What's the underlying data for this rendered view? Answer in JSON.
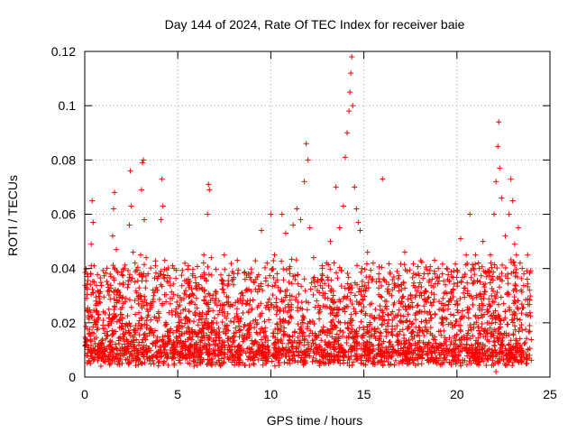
{
  "chart_data": {
    "type": "scatter",
    "title": "Day 144 of 2024, Rate Of TEC Index for receiver baie",
    "xlabel": "GPS time / hours",
    "ylabel": "ROTI / TECUs",
    "xlim": [
      0,
      25
    ],
    "ylim": [
      0,
      0.12
    ],
    "x_ticks": [
      0,
      5,
      10,
      15,
      20,
      25
    ],
    "x_tick_labels": [
      "0",
      "5",
      "10",
      "15",
      "20",
      "25"
    ],
    "y_ticks": [
      0,
      0.02,
      0.04,
      0.06,
      0.08,
      0.1,
      0.12
    ],
    "y_tick_labels": [
      "0",
      "0.02",
      "0.04",
      "0.06",
      "0.08",
      "0.1",
      "0.12"
    ],
    "grid": true,
    "marker": "plus",
    "marker_color": "#ff0000",
    "series": [
      {
        "points": [
          [
            0.1,
            0.012
          ],
          [
            0.2,
            0.022
          ],
          [
            0.3,
            0.034
          ],
          [
            0.35,
            0.049
          ],
          [
            0.4,
            0.065
          ],
          [
            0.45,
            0.057
          ],
          [
            0.5,
            0.041
          ],
          [
            0.6,
            0.028
          ],
          [
            0.7,
            0.018
          ],
          [
            0.8,
            0.009
          ],
          [
            1.0,
            0.006
          ],
          [
            1.2,
            0.015
          ],
          [
            1.3,
            0.025
          ],
          [
            1.4,
            0.037
          ],
          [
            1.5,
            0.052
          ],
          [
            1.55,
            0.062
          ],
          [
            1.6,
            0.068
          ],
          [
            1.7,
            0.047
          ],
          [
            1.8,
            0.032
          ],
          [
            1.9,
            0.021
          ],
          [
            2.0,
            0.011
          ],
          [
            2.2,
            0.019
          ],
          [
            2.3,
            0.033
          ],
          [
            2.4,
            0.056
          ],
          [
            2.45,
            0.076
          ],
          [
            2.5,
            0.063
          ],
          [
            2.6,
            0.046
          ],
          [
            2.7,
            0.042
          ],
          [
            2.8,
            0.031
          ],
          [
            2.9,
            0.027
          ],
          [
            3.0,
            0.045
          ],
          [
            3.05,
            0.069
          ],
          [
            3.1,
            0.079
          ],
          [
            3.15,
            0.08
          ],
          [
            3.2,
            0.058
          ],
          [
            3.3,
            0.044
          ],
          [
            3.4,
            0.038
          ],
          [
            3.5,
            0.025
          ],
          [
            3.6,
            0.017
          ],
          [
            3.7,
            0.03
          ],
          [
            3.8,
            0.041
          ],
          [
            3.9,
            0.032
          ],
          [
            4.0,
            0.022
          ],
          [
            4.1,
            0.058
          ],
          [
            4.15,
            0.073
          ],
          [
            4.2,
            0.063
          ],
          [
            4.3,
            0.043
          ],
          [
            4.5,
            0.035
          ],
          [
            4.6,
            0.027
          ],
          [
            4.8,
            0.04
          ],
          [
            5.0,
            0.03
          ],
          [
            5.2,
            0.016
          ],
          [
            5.4,
            0.025
          ],
          [
            5.6,
            0.033
          ],
          [
            5.8,
            0.038
          ],
          [
            6.0,
            0.029
          ],
          [
            6.2,
            0.023
          ],
          [
            6.4,
            0.045
          ],
          [
            6.6,
            0.06
          ],
          [
            6.65,
            0.071
          ],
          [
            6.7,
            0.069
          ],
          [
            6.8,
            0.044
          ],
          [
            7.0,
            0.028
          ],
          [
            7.2,
            0.018
          ],
          [
            7.5,
            0.045
          ],
          [
            7.8,
            0.026
          ],
          [
            8.0,
            0.034
          ],
          [
            8.2,
            0.043
          ],
          [
            8.5,
            0.03
          ],
          [
            8.8,
            0.038
          ],
          [
            9.0,
            0.025
          ],
          [
            9.2,
            0.036
          ],
          [
            9.5,
            0.054
          ],
          [
            9.8,
            0.042
          ],
          [
            10.0,
            0.06
          ],
          [
            10.2,
            0.045
          ],
          [
            10.4,
            0.033
          ],
          [
            10.6,
            0.06
          ],
          [
            10.8,
            0.053
          ],
          [
            11.0,
            0.04
          ],
          [
            11.2,
            0.056
          ],
          [
            11.4,
            0.062
          ],
          [
            11.6,
            0.058
          ],
          [
            11.8,
            0.072
          ],
          [
            11.9,
            0.086
          ],
          [
            12.0,
            0.08
          ],
          [
            12.1,
            0.055
          ],
          [
            12.3,
            0.044
          ],
          [
            12.5,
            0.035
          ],
          [
            12.8,
            0.03
          ],
          [
            13.0,
            0.042
          ],
          [
            13.2,
            0.05
          ],
          [
            13.5,
            0.07
          ],
          [
            13.7,
            0.055
          ],
          [
            13.9,
            0.063
          ],
          [
            14.0,
            0.081
          ],
          [
            14.1,
            0.09
          ],
          [
            14.2,
            0.098
          ],
          [
            14.25,
            0.105
          ],
          [
            14.3,
            0.112
          ],
          [
            14.35,
            0.118
          ],
          [
            14.4,
            0.1
          ],
          [
            14.5,
            0.07
          ],
          [
            14.6,
            0.062
          ],
          [
            14.7,
            0.057
          ],
          [
            14.8,
            0.054
          ],
          [
            14.9,
            0.04
          ],
          [
            15.0,
            0.032
          ],
          [
            15.2,
            0.046
          ],
          [
            15.5,
            0.042
          ],
          [
            15.8,
            0.038
          ],
          [
            16.0,
            0.073
          ],
          [
            16.2,
            0.035
          ],
          [
            16.5,
            0.03
          ],
          [
            17.0,
            0.034
          ],
          [
            17.2,
            0.046
          ],
          [
            17.5,
            0.026
          ],
          [
            18.0,
            0.03
          ],
          [
            18.5,
            0.035
          ],
          [
            18.8,
            0.043
          ],
          [
            19.0,
            0.04
          ],
          [
            19.2,
            0.022
          ],
          [
            19.5,
            0.036
          ],
          [
            19.8,
            0.032
          ],
          [
            20.0,
            0.028
          ],
          [
            20.2,
            0.051
          ],
          [
            20.5,
            0.045
          ],
          [
            20.7,
            0.06
          ],
          [
            21.0,
            0.045
          ],
          [
            21.2,
            0.04
          ],
          [
            21.4,
            0.05
          ],
          [
            21.6,
            0.037
          ],
          [
            21.8,
            0.045
          ],
          [
            22.0,
            0.06
          ],
          [
            22.1,
            0.072
          ],
          [
            22.2,
            0.085
          ],
          [
            22.25,
            0.094
          ],
          [
            22.3,
            0.077
          ],
          [
            22.4,
            0.066
          ],
          [
            22.6,
            0.052
          ],
          [
            22.8,
            0.06
          ],
          [
            22.9,
            0.073
          ],
          [
            23.0,
            0.065
          ],
          [
            23.1,
            0.049
          ],
          [
            23.2,
            0.045
          ],
          [
            23.3,
            0.055
          ],
          [
            23.4,
            0.042
          ],
          [
            23.6,
            0.038
          ],
          [
            23.8,
            0.045
          ],
          [
            23.9,
            0.032
          ],
          [
            0.1,
            0.008
          ],
          [
            0.5,
            0.01
          ],
          [
            0.9,
            0.012
          ],
          [
            1.1,
            0.01
          ],
          [
            1.5,
            0.009
          ],
          [
            2.1,
            0.008
          ],
          [
            2.6,
            0.012
          ],
          [
            3.3,
            0.01
          ],
          [
            3.9,
            0.013
          ],
          [
            4.4,
            0.009
          ],
          [
            4.9,
            0.011
          ],
          [
            5.3,
            0.008
          ],
          [
            5.9,
            0.012
          ],
          [
            6.3,
            0.009
          ],
          [
            6.9,
            0.01
          ],
          [
            7.4,
            0.013
          ],
          [
            7.9,
            0.008
          ],
          [
            8.4,
            0.011
          ],
          [
            8.9,
            0.009
          ],
          [
            9.4,
            0.012
          ],
          [
            9.9,
            0.01
          ],
          [
            10.4,
            0.013
          ],
          [
            10.9,
            0.009
          ],
          [
            11.4,
            0.011
          ],
          [
            11.9,
            0.008
          ],
          [
            12.4,
            0.012
          ],
          [
            12.9,
            0.01
          ],
          [
            13.4,
            0.013
          ],
          [
            13.9,
            0.009
          ],
          [
            14.4,
            0.011
          ],
          [
            14.9,
            0.008
          ],
          [
            15.4,
            0.012
          ],
          [
            15.9,
            0.01
          ],
          [
            16.4,
            0.013
          ],
          [
            16.9,
            0.009
          ],
          [
            17.4,
            0.011
          ],
          [
            17.9,
            0.008
          ],
          [
            18.4,
            0.012
          ],
          [
            18.9,
            0.01
          ],
          [
            19.4,
            0.013
          ],
          [
            19.9,
            0.009
          ],
          [
            20.4,
            0.011
          ],
          [
            20.9,
            0.008
          ],
          [
            21.4,
            0.012
          ],
          [
            21.9,
            0.01
          ],
          [
            22.4,
            0.013
          ],
          [
            22.9,
            0.009
          ],
          [
            23.4,
            0.011
          ],
          [
            23.9,
            0.008
          ],
          [
            22.1,
            0.002
          ]
        ]
      }
    ]
  }
}
